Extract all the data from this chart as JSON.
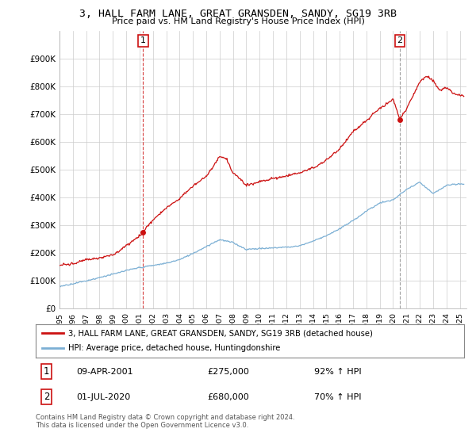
{
  "title_line1": "3, HALL FARM LANE, GREAT GRANSDEN, SANDY, SG19 3RB",
  "title_line2": "Price paid vs. HM Land Registry's House Price Index (HPI)",
  "xlim_start": 1995.0,
  "xlim_end": 2025.5,
  "ylim_bottom": 0,
  "ylim_top": 1000000,
  "yticks": [
    0,
    100000,
    200000,
    300000,
    400000,
    500000,
    600000,
    700000,
    800000,
    900000
  ],
  "ytick_labels": [
    "£0",
    "£100K",
    "£200K",
    "£300K",
    "£400K",
    "£500K",
    "£600K",
    "£700K",
    "£800K",
    "£900K"
  ],
  "xticks": [
    1995,
    1996,
    1997,
    1998,
    1999,
    2000,
    2001,
    2002,
    2003,
    2004,
    2005,
    2006,
    2007,
    2008,
    2009,
    2010,
    2011,
    2012,
    2013,
    2014,
    2015,
    2016,
    2017,
    2018,
    2019,
    2020,
    2021,
    2022,
    2023,
    2024,
    2025
  ],
  "sale1_x": 2001.27,
  "sale1_y": 275000,
  "sale2_x": 2020.5,
  "sale2_y": 680000,
  "hpi_color": "#7bafd4",
  "price_color": "#cc1111",
  "sale1_vline_color": "#cc1111",
  "sale2_vline_color": "#888888",
  "box_color": "#cc1111",
  "legend_line1": "3, HALL FARM LANE, GREAT GRANSDEN, SANDY, SG19 3RB (detached house)",
  "legend_line2": "HPI: Average price, detached house, Huntingdonshire",
  "annotation1_date": "09-APR-2001",
  "annotation1_price": "£275,000",
  "annotation1_hpi": "92% ↑ HPI",
  "annotation2_date": "01-JUL-2020",
  "annotation2_price": "£680,000",
  "annotation2_hpi": "70% ↑ HPI",
  "footer": "Contains HM Land Registry data © Crown copyright and database right 2024.\nThis data is licensed under the Open Government Licence v3.0.",
  "background_color": "#ffffff",
  "plot_bg_color": "#ffffff",
  "grid_color": "#cccccc",
  "hpi_anchors_x": [
    1995,
    1996,
    1997,
    1998,
    1999,
    2000,
    2001,
    2002,
    2003,
    2004,
    2005,
    2006,
    2007,
    2008,
    2009,
    2010,
    2011,
    2012,
    2013,
    2014,
    2015,
    2016,
    2017,
    2018,
    2019,
    2020,
    2021,
    2022,
    2023,
    2024,
    2025
  ],
  "hpi_anchors_y": [
    80000,
    90000,
    101000,
    113000,
    125000,
    138000,
    148000,
    155000,
    163000,
    178000,
    200000,
    225000,
    250000,
    240000,
    215000,
    218000,
    220000,
    223000,
    228000,
    245000,
    265000,
    290000,
    320000,
    355000,
    385000,
    395000,
    435000,
    460000,
    420000,
    450000,
    455000
  ],
  "price_anchors_x": [
    1995,
    1996,
    1997,
    1998,
    1999,
    2000,
    2001.27,
    2001.5,
    2002,
    2003,
    2004,
    2005,
    2006,
    2007,
    2007.5,
    2008,
    2009,
    2009.5,
    2010,
    2011,
    2012,
    2013,
    2014,
    2015,
    2016,
    2017,
    2018,
    2019,
    2020,
    2020.5,
    2021,
    2021.5,
    2022,
    2022.5,
    2023,
    2023.5,
    2024,
    2024.5,
    2025
  ],
  "price_anchors_y": [
    155000,
    162000,
    175000,
    185000,
    195000,
    230000,
    275000,
    295000,
    320000,
    365000,
    400000,
    445000,
    480000,
    550000,
    540000,
    490000,
    445000,
    450000,
    460000,
    470000,
    480000,
    490000,
    510000,
    540000,
    580000,
    640000,
    680000,
    720000,
    755000,
    680000,
    720000,
    770000,
    820000,
    840000,
    825000,
    790000,
    800000,
    780000,
    770000
  ]
}
